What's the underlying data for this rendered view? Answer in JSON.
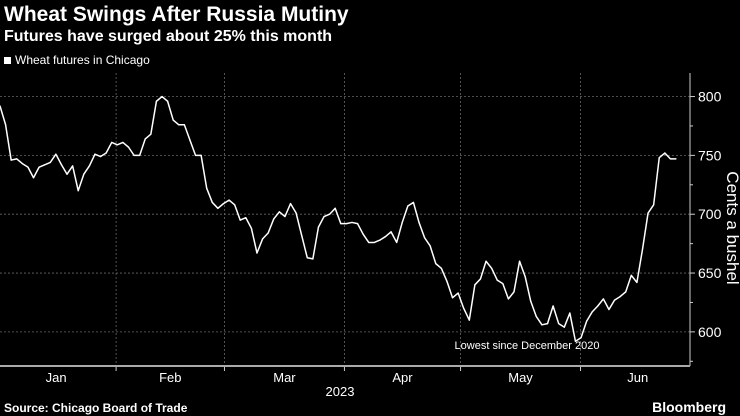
{
  "header": {
    "title": "Wheat Swings After Russia Mutiny",
    "subtitle": "Futures have surged about 25% this month"
  },
  "footer": {
    "source": "Source: Chicago Board of Trade",
    "brand": "Bloomberg"
  },
  "chart_data": {
    "type": "line",
    "title": "Wheat Swings After Russia Mutiny",
    "subtitle": "Futures have surged about 25% this month",
    "ylabel": "Cents a bushel",
    "xlabel": "2023",
    "x_ticks": [
      "Jan",
      "Feb",
      "Mar",
      "Apr",
      "May",
      "Jun"
    ],
    "y_ticks": [
      600,
      650,
      700,
      750,
      800
    ],
    "ylim": [
      571,
      820
    ],
    "x_range": [
      "2023-01-02",
      "2023-06-28"
    ],
    "grid": true,
    "legend_position": "top-left",
    "annotation": "Lowest since December 2020",
    "line_color": "#ffffff",
    "series": [
      {
        "name": "Wheat futures in Chicago",
        "values": [
          792,
          776,
          746,
          747,
          743,
          740,
          731,
          740,
          742,
          744,
          751,
          742,
          734,
          741,
          720,
          734,
          741,
          751,
          749,
          752,
          761,
          759,
          761,
          757,
          750,
          750,
          764,
          768,
          796,
          800,
          796,
          780,
          776,
          776,
          763,
          750,
          750,
          722,
          710,
          705,
          709,
          712,
          708,
          695,
          697,
          688,
          667,
          679,
          684,
          696,
          702,
          698,
          709,
          701,
          682,
          663,
          662,
          689,
          698,
          700,
          705,
          692,
          692,
          693,
          692,
          683,
          676,
          676,
          678,
          681,
          685,
          676,
          693,
          707,
          710,
          693,
          680,
          673,
          658,
          654,
          643,
          629,
          633,
          620,
          610,
          640,
          645,
          660,
          654,
          644,
          641,
          628,
          634,
          660,
          647,
          626,
          613,
          606,
          607,
          622,
          607,
          604,
          616,
          592,
          595,
          609,
          617,
          622,
          628,
          619,
          627,
          630,
          634,
          648,
          642,
          670,
          701,
          708,
          748,
          752,
          747,
          747
        ]
      }
    ]
  }
}
